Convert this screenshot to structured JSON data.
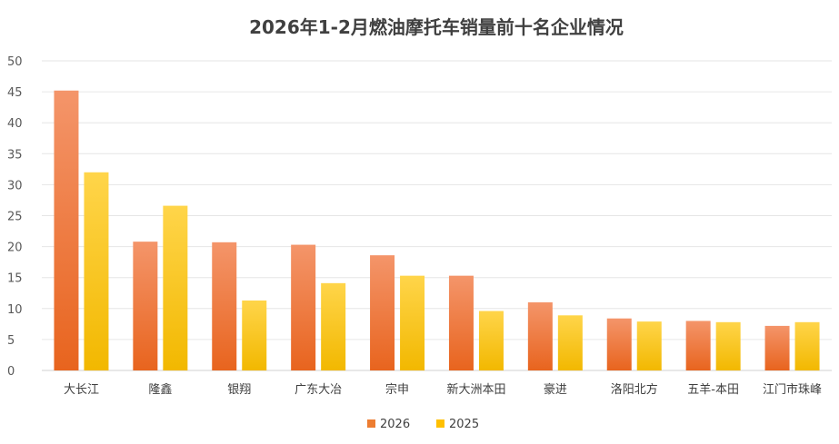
{
  "chart_data": {
    "type": "bar",
    "title": "2026年1-2月燃油摩托车销量前十名企业情况",
    "xlabel": "",
    "ylabel": "",
    "ylim": [
      0,
      50
    ],
    "yticks": [
      0,
      5,
      10,
      15,
      20,
      25,
      30,
      35,
      40,
      45,
      50
    ],
    "grid": true,
    "legend_position": "bottom",
    "categories": [
      "大长江",
      "隆鑫",
      "银翔",
      "广东大冶",
      "宗申",
      "新大洲本田",
      "豪进",
      "洛阳北方",
      "五羊-本田",
      "江门市珠峰"
    ],
    "series": [
      {
        "name": "2026",
        "color": "#ED7D31",
        "values": [
          45.2,
          20.8,
          20.7,
          20.3,
          18.6,
          15.3,
          11.0,
          8.4,
          8.0,
          7.2
        ]
      },
      {
        "name": "2025",
        "color": "#FFC000",
        "values": [
          32.0,
          26.6,
          11.3,
          14.1,
          15.3,
          9.6,
          8.9,
          7.9,
          7.8,
          7.8
        ]
      }
    ]
  }
}
